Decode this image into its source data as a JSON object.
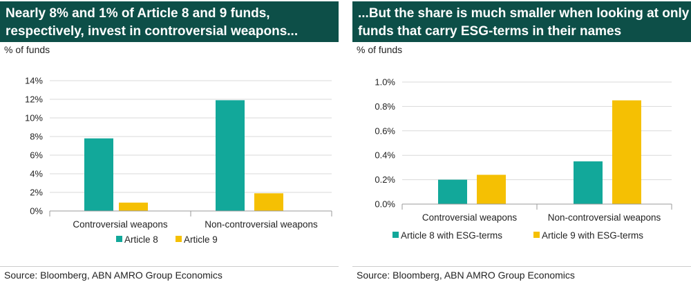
{
  "left": {
    "title_lines": [
      "Nearly 8% and 1% of Article 8 and 9 funds,",
      "respectively, invest in controversial weapons..."
    ],
    "unit": "% of funds",
    "source": "Source: Bloomberg, ABN AMRO Group Economics"
  },
  "right": {
    "title_lines": [
      "...But the share is much smaller when looking at only",
      "funds that carry ESG-terms in their names"
    ],
    "unit": "% of funds",
    "source": "Source: Bloomberg, ABN AMRO Group Economics"
  },
  "colors": {
    "teal": "#12a89a",
    "yellow": "#f5c003",
    "title_bg": "#0d4f48"
  },
  "chart_data": [
    {
      "type": "bar",
      "categories": [
        "Controversial weapons",
        "Non-controversial weapons"
      ],
      "series": [
        {
          "name": "Article 8",
          "color": "#12a89a",
          "values": [
            7.8,
            11.9
          ]
        },
        {
          "name": "Article 9",
          "color": "#f5c003",
          "values": [
            0.9,
            1.9
          ]
        }
      ],
      "ylim": [
        0,
        14
      ],
      "yticks": [
        0,
        2,
        4,
        6,
        8,
        10,
        12,
        14
      ],
      "ytick_labels": [
        "0%",
        "2%",
        "4%",
        "6%",
        "8%",
        "10%",
        "12%",
        "14%"
      ],
      "ylabel": "% of funds",
      "grid": true,
      "legend": "bottom"
    },
    {
      "type": "bar",
      "categories": [
        "Controversial weapons",
        "Non-controversial weapons"
      ],
      "series": [
        {
          "name": "Article 8 with ESG-terms",
          "color": "#12a89a",
          "values": [
            0.2,
            0.35
          ]
        },
        {
          "name": "Article 9 with ESG-terms",
          "color": "#f5c003",
          "values": [
            0.24,
            0.85
          ]
        }
      ],
      "ylim": [
        0,
        1.0
      ],
      "yticks": [
        0,
        0.2,
        0.4,
        0.6,
        0.8,
        1.0
      ],
      "ytick_labels": [
        "0.0%",
        "0.2%",
        "0.4%",
        "0.6%",
        "0.8%",
        "1.0%"
      ],
      "ylabel": "% of funds",
      "grid": true,
      "legend": "bottom"
    }
  ]
}
